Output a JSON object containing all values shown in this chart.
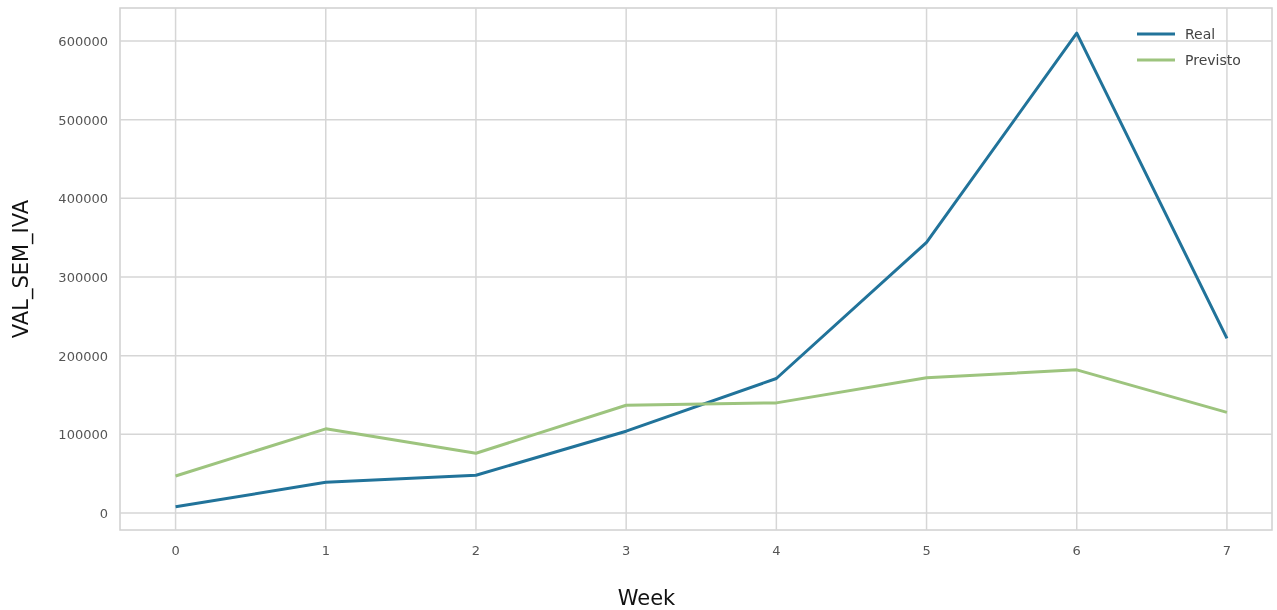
{
  "chart_data": {
    "type": "line",
    "xlabel": "Week",
    "ylabel": "VAL_SEM_IVA",
    "x": [
      0,
      1,
      2,
      3,
      4,
      5,
      6,
      7
    ],
    "series": [
      {
        "name": "Real",
        "color": "#21739a",
        "values": [
          8000,
          39000,
          48000,
          104000,
          171000,
          344000,
          610000,
          222000
        ]
      },
      {
        "name": "Previsto",
        "color": "#9dc47e",
        "values": [
          47000,
          107000,
          76000,
          137000,
          140000,
          172000,
          182000,
          128000
        ]
      }
    ],
    "xlim": [
      -0.37,
      7.3
    ],
    "xticks": [
      0,
      1,
      2,
      3,
      4,
      5,
      6,
      7
    ],
    "ylim": [
      -21600,
      642000
    ],
    "yticks": [
      0,
      100000,
      200000,
      300000,
      400000,
      500000,
      600000
    ],
    "grid": true,
    "legend": "top right",
    "line_style": "solid",
    "marker": "none"
  }
}
